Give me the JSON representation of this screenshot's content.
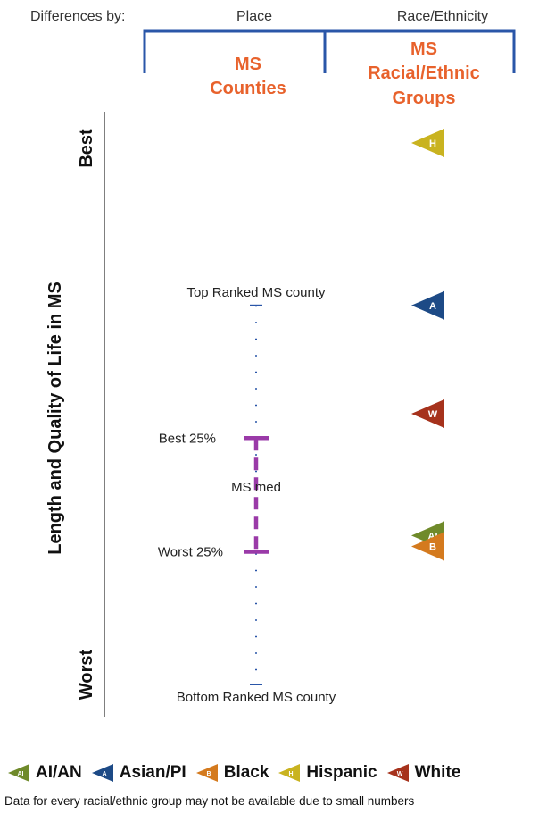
{
  "header": {
    "prefix": "Differences by:",
    "place": "Place",
    "race": "Race/Ethnicity"
  },
  "columns": {
    "counties_line1": "MS",
    "counties_line2": "Counties",
    "groups_line1": "MS",
    "groups_line2": "Racial/Ethnic",
    "groups_line3": "Groups"
  },
  "colors": {
    "bracket": "#2a56a8",
    "column_title": "#e8622c",
    "county_range": "#9a3aa8",
    "tick": "#2a56a8"
  },
  "chart_data": {
    "type": "scatter",
    "ylabel": "Length and Quality of Life in MS",
    "y_top_label": "Best",
    "y_bottom_label": "Worst",
    "y_scale": "relative rank, 1 = best, 0 = worst",
    "county_distribution": {
      "top_label": "Top Ranked MS county",
      "top_value": 0.7,
      "q1_label": "Best 25%",
      "q1_value": 0.455,
      "median_label": "MS med",
      "median_value": 0.365,
      "q3_label": "Worst 25%",
      "q3_value": 0.245,
      "bottom_label": "Bottom Ranked MS county",
      "bottom_value": 0.0
    },
    "groups": [
      {
        "code": "H",
        "name": "Hispanic",
        "value": 1.0,
        "color": "#c9b320"
      },
      {
        "code": "A",
        "name": "Asian/PI",
        "value": 0.7,
        "color": "#1d4a86"
      },
      {
        "code": "W",
        "name": "White",
        "value": 0.5,
        "color": "#a6321c"
      },
      {
        "code": "AI",
        "name": "AI/AN",
        "value": 0.275,
        "color": "#6f8a2a"
      },
      {
        "code": "B",
        "name": "Black",
        "value": 0.255,
        "color": "#d47a1e"
      }
    ]
  },
  "legend": [
    {
      "code": "AI",
      "label": "AI/AN",
      "color": "#6f8a2a"
    },
    {
      "code": "A",
      "label": "Asian/PI",
      "color": "#1d4a86"
    },
    {
      "code": "B",
      "label": "Black",
      "color": "#d47a1e"
    },
    {
      "code": "H",
      "label": "Hispanic",
      "color": "#c9b320"
    },
    {
      "code": "W",
      "label": "White",
      "color": "#a6321c"
    }
  ],
  "footnote": "Data for every racial/ethnic group may not be available due to small numbers"
}
